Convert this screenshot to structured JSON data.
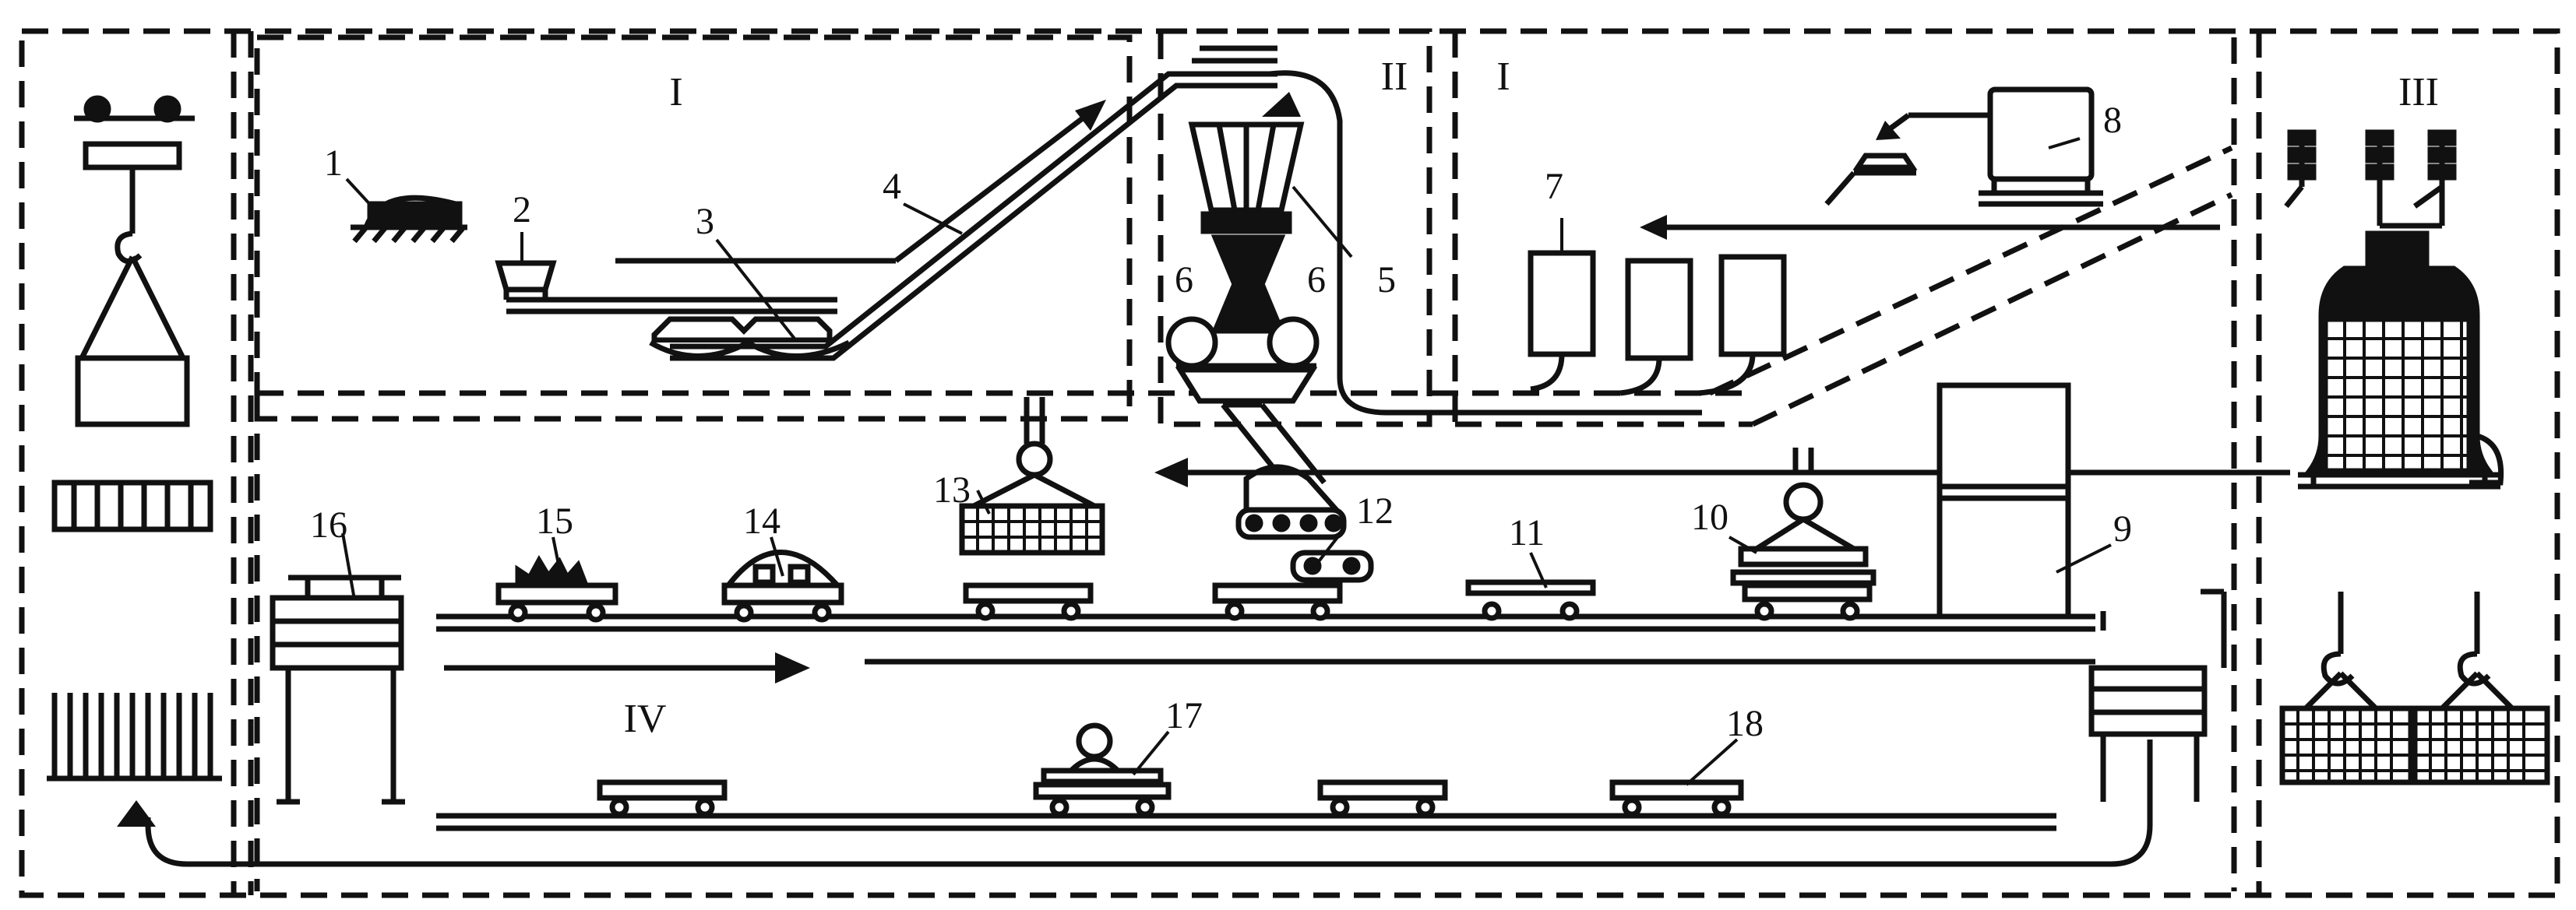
{
  "diagram": {
    "zone_labels": {
      "zone_a": "I",
      "zone_b": "II",
      "zone_c": "I",
      "zone_d": "III",
      "zone_e": "IV"
    },
    "item_labels": [
      "1",
      "2",
      "3",
      "4",
      "5",
      "6",
      "6",
      "7",
      "8",
      "9",
      "10",
      "11",
      "12",
      "13",
      "14",
      "15",
      "16",
      "17",
      "18"
    ],
    "ink_color": "#111111",
    "background_color": "#ffffff"
  }
}
